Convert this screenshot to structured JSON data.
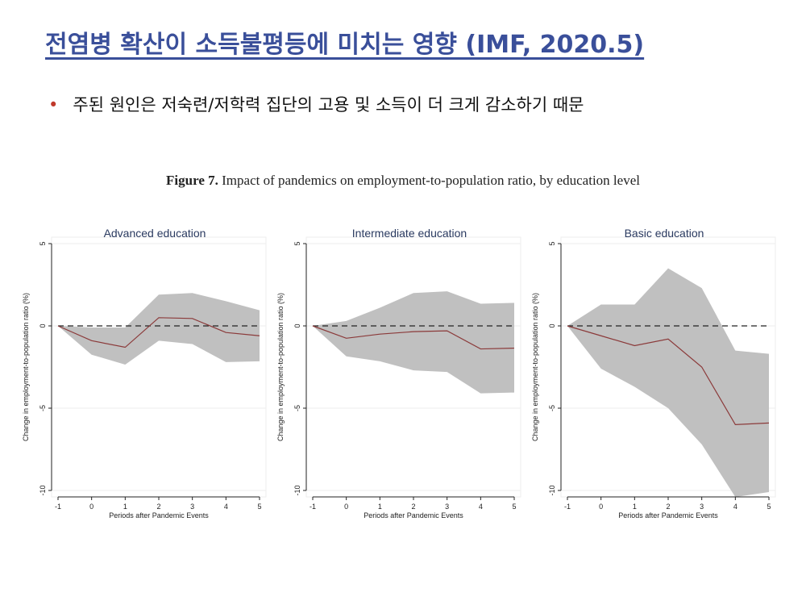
{
  "slide": {
    "title": "전염병 확산이 소득불평등에 미치는 영향 (IMF, 2020.5)",
    "bullet_marker": "•",
    "bullet": "주된 원인은 저숙련/저학력 집단의 고용 및 소득이 더 크게 감소하기 때문",
    "figure_label": "Figure 7.",
    "figure_title": "Impact of pandemics on employment-to-population ratio, by education level"
  },
  "colors": {
    "title": "#3a4f9a",
    "band": "#c0c0c0",
    "line": "#8b3a3a",
    "zero": "#222222"
  },
  "chart_data": [
    {
      "type": "line",
      "title": "Advanced education",
      "xlabel": "Periods after Pandemic Events",
      "ylabel": "Change in employment-to-population ratio (%)",
      "x": [
        -1,
        0,
        1,
        2,
        3,
        4,
        5
      ],
      "x_ticks": [
        "-1",
        "0",
        "1",
        "2",
        "3",
        "4",
        "5"
      ],
      "y_ticks": [
        "5",
        "0",
        "-5",
        "-10"
      ],
      "ylim": [
        -10,
        5
      ],
      "series": [
        {
          "name": "estimate",
          "values": [
            0,
            -0.9,
            -1.3,
            0.5,
            0.45,
            -0.4,
            -0.6
          ]
        },
        {
          "name": "upper",
          "values": [
            0,
            -0.1,
            -0.1,
            1.9,
            2.0,
            1.5,
            0.95
          ]
        },
        {
          "name": "lower",
          "values": [
            0,
            -1.75,
            -2.35,
            -0.9,
            -1.1,
            -2.2,
            -2.15
          ]
        }
      ]
    },
    {
      "type": "line",
      "title": "Intermediate education",
      "xlabel": "Periods after Pandemic Events",
      "ylabel": "Change in employment-to-population ratio (%)",
      "x": [
        -1,
        0,
        1,
        2,
        3,
        4,
        5
      ],
      "x_ticks": [
        "-1",
        "0",
        "1",
        "2",
        "3",
        "4",
        "5"
      ],
      "y_ticks": [
        "5",
        "0",
        "-5",
        "-10"
      ],
      "ylim": [
        -10,
        5
      ],
      "series": [
        {
          "name": "estimate",
          "values": [
            0,
            -0.75,
            -0.5,
            -0.35,
            -0.3,
            -1.4,
            -1.35
          ]
        },
        {
          "name": "upper",
          "values": [
            0,
            0.3,
            1.1,
            2.0,
            2.1,
            1.35,
            1.4
          ]
        },
        {
          "name": "lower",
          "values": [
            0,
            -1.85,
            -2.15,
            -2.7,
            -2.8,
            -4.1,
            -4.05
          ]
        }
      ]
    },
    {
      "type": "line",
      "title": "Basic education",
      "xlabel": "Periods after Pandemic Events",
      "ylabel": "Change in employment-to-population ratio (%)",
      "x": [
        -1,
        0,
        1,
        2,
        3,
        4,
        5
      ],
      "x_ticks": [
        "-1",
        "0",
        "1",
        "2",
        "3",
        "4",
        "5"
      ],
      "y_ticks": [
        "5",
        "0",
        "-5",
        "-10"
      ],
      "ylim": [
        -10,
        5
      ],
      "series": [
        {
          "name": "estimate",
          "values": [
            0,
            -0.6,
            -1.2,
            -0.8,
            -2.5,
            -6.0,
            -5.9
          ]
        },
        {
          "name": "upper",
          "values": [
            0,
            1.3,
            1.3,
            3.5,
            2.3,
            -1.5,
            -1.7
          ]
        },
        {
          "name": "lower",
          "values": [
            0,
            -2.6,
            -3.7,
            -5.0,
            -7.2,
            -10.4,
            -10.1
          ]
        }
      ]
    }
  ]
}
